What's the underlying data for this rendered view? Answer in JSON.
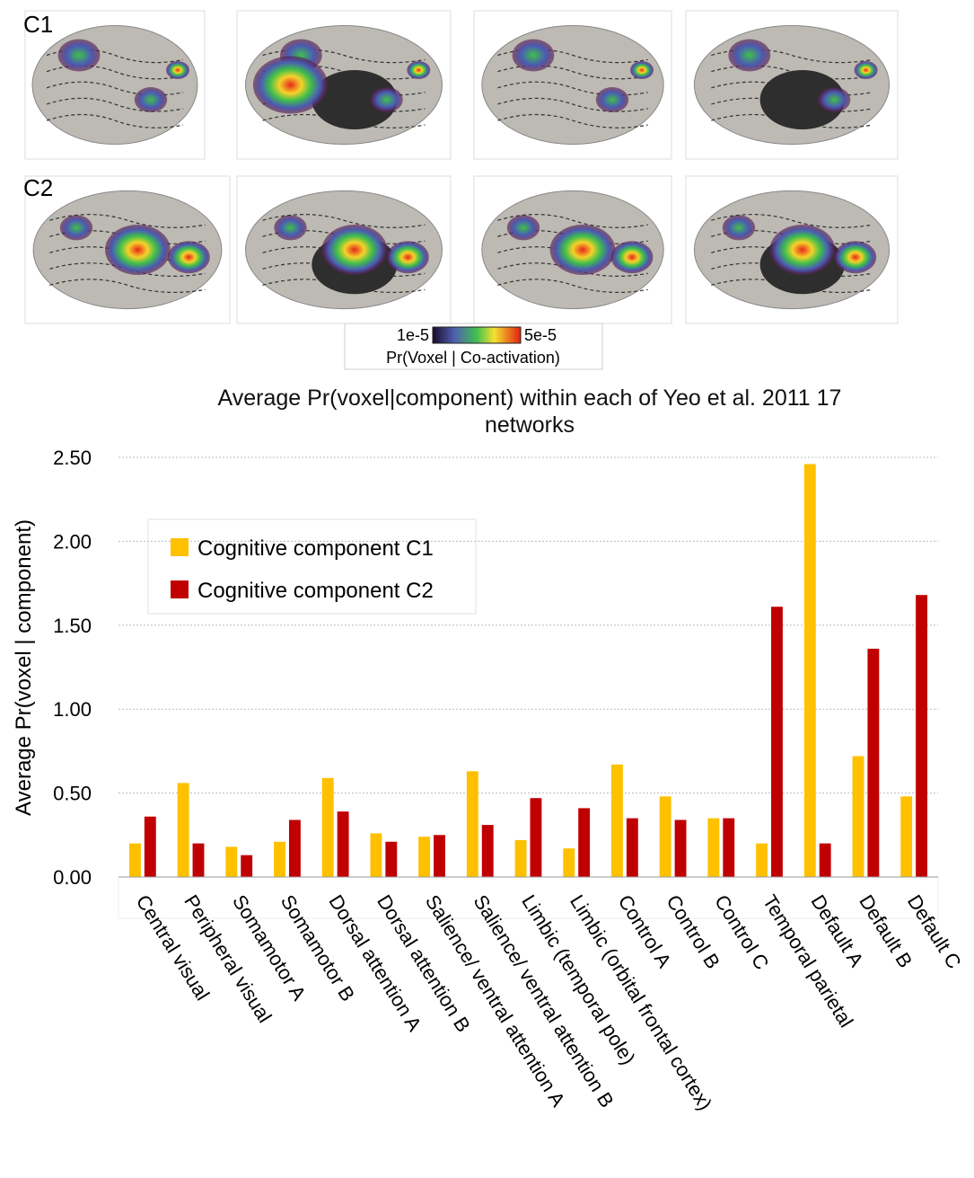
{
  "figure": {
    "row_labels": [
      "C1",
      "C2"
    ],
    "colorbar": {
      "min_label": "1e-5",
      "max_label": "5e-5",
      "label": "Pr(Voxel | Co-activation)"
    }
  },
  "chart_data": {
    "type": "bar",
    "title": "Average Pr(voxel|component) within each of Yeo et al. 2011 17 networks",
    "y_label": "Average Pr(voxel | component)",
    "categories": [
      "Central visual",
      "Peripheral visual",
      "Somamotor A",
      "Somamotor B",
      "Dorsal attention A",
      "Dorsal attention B",
      "Salience/ ventral attention A",
      "Salience/ ventral attention B",
      "Limbic (temporal pole)",
      "Limbic (orbital frontal cortex)",
      "Control A",
      "Control B",
      "Control C",
      "Temporal parietal",
      "Default A",
      "Default B",
      "Default C"
    ],
    "series": [
      {
        "name": "Cognitive component C1",
        "color": "#ffc000",
        "values": [
          0.2,
          0.56,
          0.18,
          0.21,
          0.59,
          0.26,
          0.24,
          0.63,
          0.22,
          0.17,
          0.67,
          0.48,
          0.35,
          0.2,
          2.46,
          0.72,
          0.48
        ]
      },
      {
        "name": "Cognitive component C2",
        "color": "#c00000",
        "values": [
          0.36,
          0.2,
          0.13,
          0.34,
          0.39,
          0.21,
          0.25,
          0.31,
          0.47,
          0.41,
          0.35,
          0.34,
          0.35,
          1.61,
          0.2,
          1.36,
          1.68
        ]
      }
    ],
    "ylim": [
      0,
      2.5
    ],
    "yticks": [
      {
        "value": 0,
        "label": "0.00"
      },
      {
        "value": 0.5,
        "label": "0.50"
      },
      {
        "value": 1,
        "label": "1.00"
      },
      {
        "value": 1.5,
        "label": "1.50"
      },
      {
        "value": 2,
        "label": "2.00"
      },
      {
        "value": 2.5,
        "label": "2.50"
      }
    ],
    "grid": true,
    "legend": "upper left"
  }
}
